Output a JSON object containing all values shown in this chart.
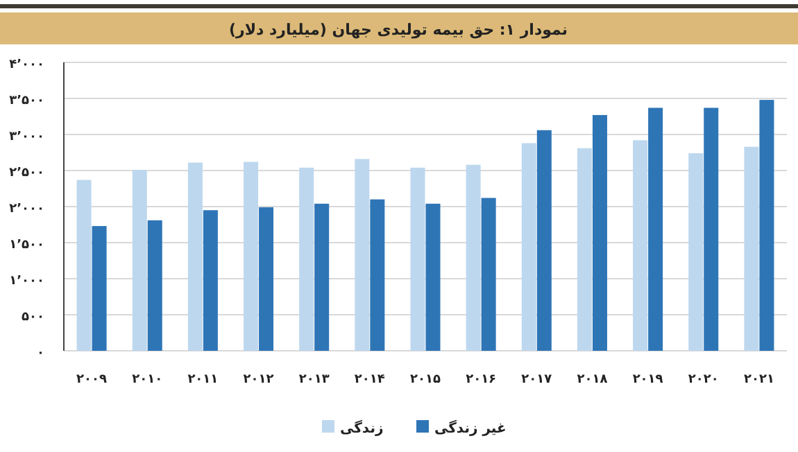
{
  "chart_data": {
    "type": "bar",
    "title": "نمودار ۱: حق بیمه تولیدی جهان (میلیارد دلار)",
    "categories": [
      "۲۰۰۹",
      "۲۰۱۰",
      "۲۰۱۱",
      "۲۰۱۲",
      "۲۰۱۳",
      "۲۰۱۴",
      "۲۰۱۵",
      "۲۰۱۶",
      "۲۰۱۷",
      "۲۰۱۸",
      "۲۰۱۹",
      "۲۰۲۰",
      "۲۰۲۱"
    ],
    "series": [
      {
        "name": "زندگی",
        "color": "#bdd7ee",
        "values": [
          2370,
          2510,
          2610,
          2620,
          2540,
          2660,
          2540,
          2580,
          2880,
          2810,
          2920,
          2740,
          2830
        ]
      },
      {
        "name": "غیر زندگی",
        "color": "#2e75b6",
        "values": [
          1730,
          1810,
          1950,
          1990,
          2040,
          2100,
          2040,
          2120,
          3060,
          3270,
          3370,
          3370,
          3480
        ]
      }
    ],
    "ylim": [
      0,
      4000
    ],
    "yticks": [
      {
        "value": 0,
        "label": "۰"
      },
      {
        "value": 500,
        "label": "۵۰۰"
      },
      {
        "value": 1000,
        "label": "۱٬۰۰۰"
      },
      {
        "value": 1500,
        "label": "۱٬۵۰۰"
      },
      {
        "value": 2000,
        "label": "۲٬۰۰۰"
      },
      {
        "value": 2500,
        "label": "۲٬۵۰۰"
      },
      {
        "value": 3000,
        "label": "۳٬۰۰۰"
      },
      {
        "value": 3500,
        "label": "۳٬۵۰۰"
      },
      {
        "value": 4000,
        "label": "۴٬۰۰۰"
      }
    ],
    "grid": "y",
    "legend": "bottom"
  }
}
